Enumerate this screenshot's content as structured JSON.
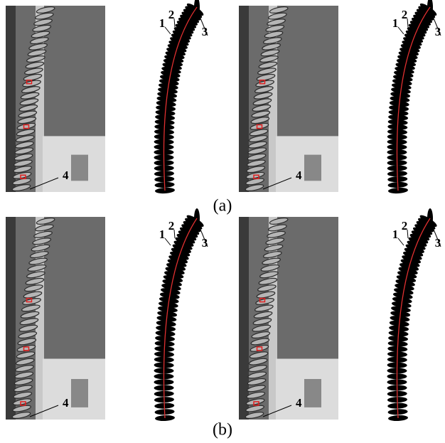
{
  "rows": [
    {
      "caption": "(a)",
      "panels": [
        {
          "photo_label": "4",
          "segment_labels": [
            "1",
            "2",
            "3"
          ]
        },
        {
          "photo_label": "4",
          "segment_labels": [
            "1",
            "2",
            "3"
          ]
        }
      ]
    },
    {
      "caption": "(b)",
      "panels": [
        {
          "photo_label": "4",
          "segment_labels": [
            "1",
            "2",
            "3"
          ]
        },
        {
          "photo_label": "4",
          "segment_labels": [
            "1",
            "2",
            "3"
          ]
        }
      ]
    }
  ]
}
